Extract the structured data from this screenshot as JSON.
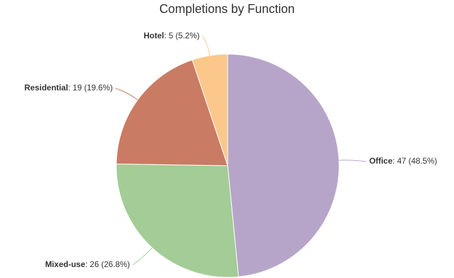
{
  "chart_data": {
    "type": "pie",
    "title": "Completions by Function",
    "categories": [
      "Office",
      "Mixed-use",
      "Residential",
      "Hotel"
    ],
    "values": [
      47,
      26,
      19,
      5
    ],
    "value_labels": [
      "47 (48.5%)",
      "26 (26.8%)",
      "19 (19.6%)",
      "5 (5.2%)"
    ],
    "colors": [
      "#b7a5c9",
      "#a3cc97",
      "#c97b63",
      "#fbc78b"
    ]
  }
}
